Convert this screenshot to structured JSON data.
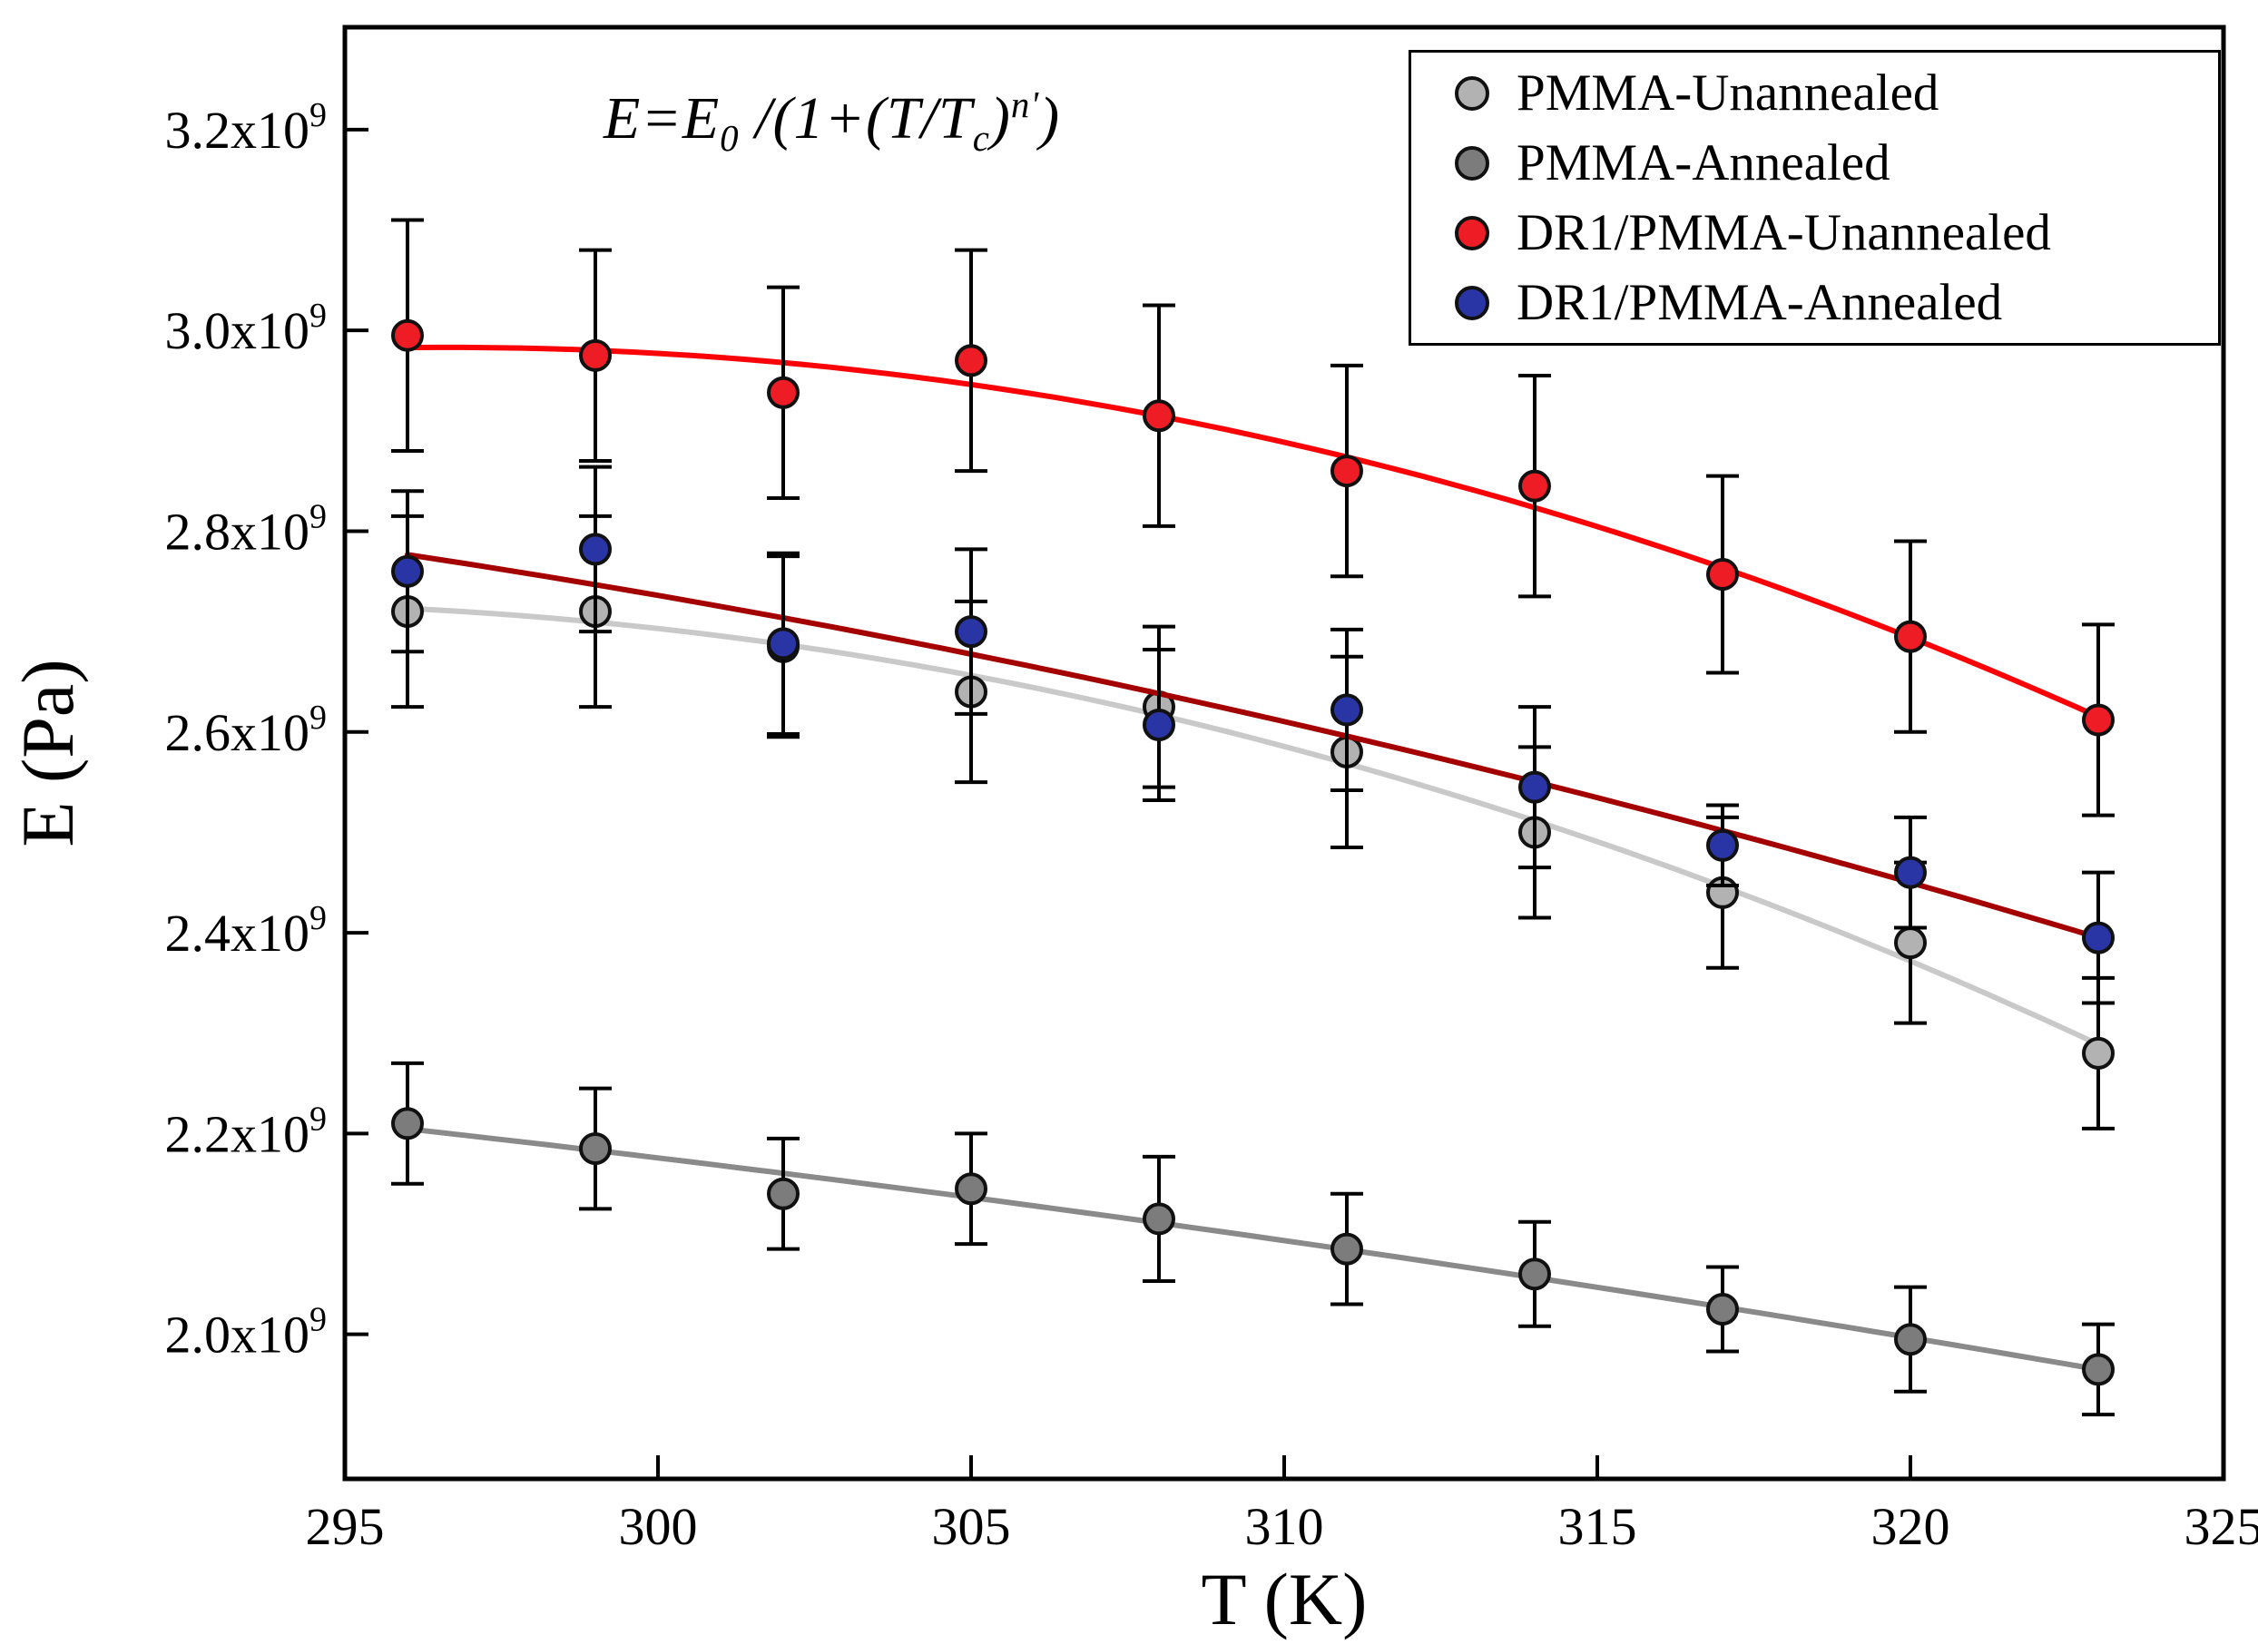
{
  "figure": {
    "background": "#ffffff",
    "frame_color": "#000000"
  },
  "annotation": {
    "p1": "E=E",
    "sub1": "0",
    "p2": " /(1+(T/T",
    "sub2": "c",
    "p3": ")",
    "sup1": "n'",
    "p4": ")"
  },
  "chart_data": {
    "type": "scatter",
    "title": "",
    "xlabel": "T (K)",
    "ylabel": "E (Pa)",
    "xlim": [
      295,
      325
    ],
    "ylim_e9": [
      1.856,
      3.302
    ],
    "x_ticks": [
      295,
      300,
      305,
      310,
      315,
      320,
      325
    ],
    "y_ticks_e9": [
      2.0,
      2.2,
      2.4,
      2.6,
      2.8,
      3.0,
      3.2
    ],
    "y_tick_mantissa_suffix": "x10",
    "y_tick_exponent": "9",
    "grid": false,
    "legend_position": "top-right",
    "x": [
      296,
      299,
      302,
      305,
      308,
      311,
      314,
      317,
      320,
      323
    ],
    "series": [
      {
        "name": "PMMA-Unannealed",
        "marker_color": "#b2b2b2",
        "line_color": "#c9c9c9",
        "values_e9": [
          2.72,
          2.72,
          2.685,
          2.64,
          2.625,
          2.58,
          2.5,
          2.44,
          2.39,
          2.28
        ],
        "errors_e9": [
          0.095,
          0.095,
          0.09,
          0.09,
          0.08,
          0.095,
          0.085,
          0.075,
          0.08,
          0.075
        ]
      },
      {
        "name": "PMMA-Annealed",
        "marker_color": "#7c7c7c",
        "line_color": "#8a8a8a",
        "values_e9": [
          2.21,
          2.185,
          2.14,
          2.145,
          2.115,
          2.085,
          2.06,
          2.025,
          1.995,
          1.965
        ],
        "errors_e9": [
          0.06,
          0.06,
          0.055,
          0.055,
          0.062,
          0.055,
          0.052,
          0.042,
          0.052,
          0.045
        ]
      },
      {
        "name": "DR1/PMMA-Unannealed",
        "marker_color": "#ee1c25",
        "line_color": "#fb0207",
        "values_e9": [
          2.995,
          2.975,
          2.938,
          2.97,
          2.915,
          2.86,
          2.845,
          2.757,
          2.695,
          2.612
        ],
        "errors_e9": [
          0.115,
          0.105,
          0.105,
          0.11,
          0.11,
          0.105,
          0.11,
          0.098,
          0.095,
          0.095
        ]
      },
      {
        "name": "DR1/PMMA-Annealed",
        "marker_color": "#2a35a5",
        "line_color": "#a40000",
        "values_e9": [
          2.76,
          2.782,
          2.688,
          2.7,
          2.607,
          2.622,
          2.545,
          2.487,
          2.46,
          2.395
        ],
        "errors_e9": [
          0.08,
          0.082,
          0.09,
          0.082,
          0.075,
          0.08,
          0.08,
          0.04,
          0.055,
          0.065
        ]
      }
    ]
  }
}
